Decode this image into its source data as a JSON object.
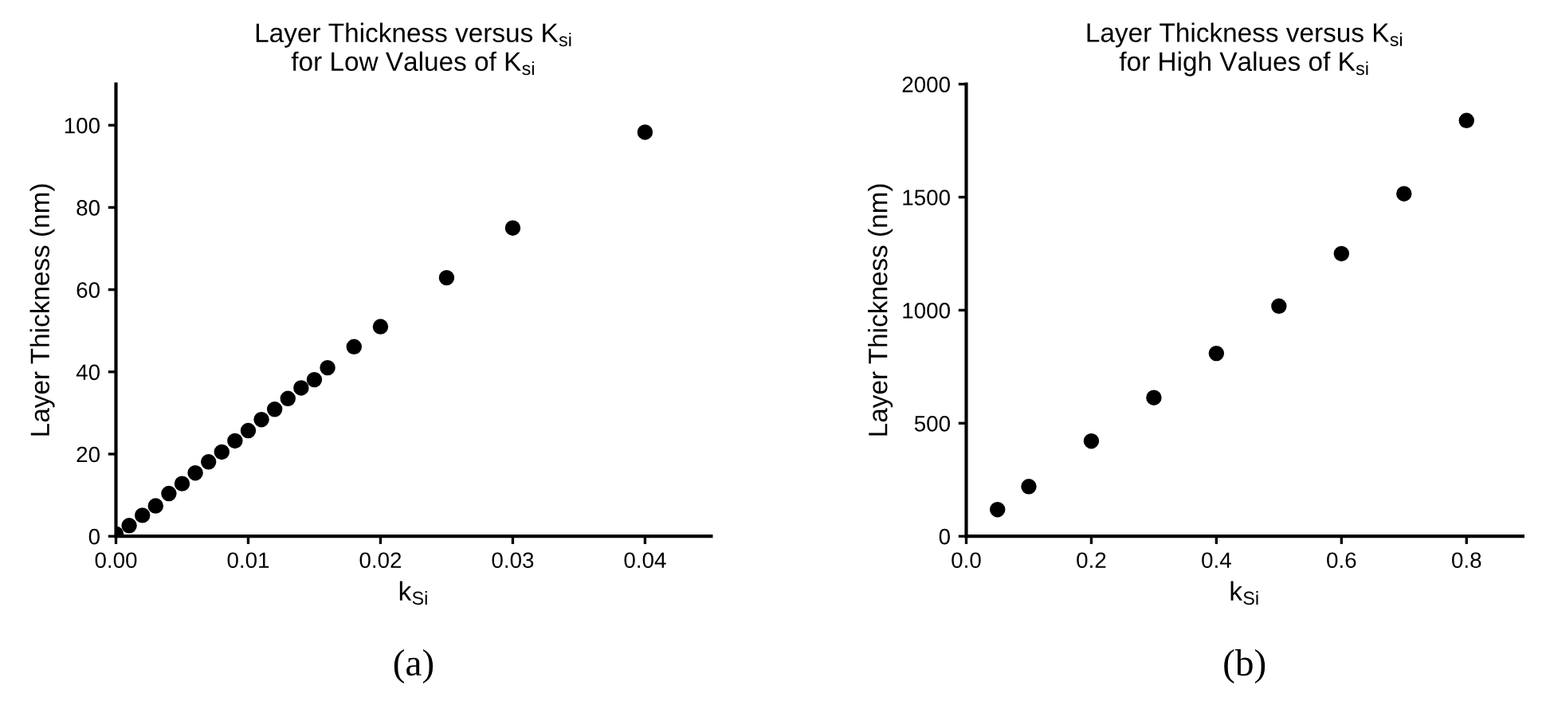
{
  "chart_data": [
    {
      "type": "scatter",
      "title": "Layer Thickness versus K$_{si}$\nfor Low Values of K$_{si}$",
      "xlabel": "k$_{Si}$",
      "ylabel": "Layer Thickness (nm)",
      "x": [
        0.0,
        0.001,
        0.002,
        0.003,
        0.004,
        0.005,
        0.006,
        0.007,
        0.008,
        0.009,
        0.01,
        0.011,
        0.012,
        0.013,
        0.014,
        0.015,
        0.016,
        0.018,
        0.02,
        0.025,
        0.03,
        0.04
      ],
      "series": [
        {
          "color": "#000000",
          "values": [
            0.6,
            2.6,
            5.1,
            7.4,
            10.4,
            12.8,
            15.4,
            18.1,
            20.5,
            23.2,
            25.7,
            28.4,
            30.9,
            33.5,
            36.1,
            38.1,
            41.0,
            46.1,
            51.0,
            62.9,
            75.0,
            98.3
          ]
        }
      ],
      "xlim": [
        0,
        0.045
      ],
      "ylim": [
        0,
        110
      ],
      "xticks": [
        {
          "value": 0,
          "label": "0.00"
        },
        0.01,
        0.02,
        0.03,
        0.04
      ],
      "yticks": [
        0,
        20,
        40,
        60,
        80,
        100
      ],
      "marker": "circle",
      "grid": false,
      "annotations": [
        "(a)"
      ]
    },
    {
      "type": "scatter",
      "title": "Layer Thickness versus K$_{si}$\nfor High Values of K$_{si}$",
      "xlabel": "k$_{Si}$",
      "ylabel": "Layer Thickness (nm)",
      "x": [
        0.05,
        0.1,
        0.2,
        0.3,
        0.4,
        0.5,
        0.6,
        0.7,
        0.8
      ],
      "series": [
        {
          "color": "#000000",
          "values": [
            118,
            220,
            421,
            613,
            809,
            1018,
            1250,
            1515,
            1839
          ]
        }
      ],
      "xlim": [
        0,
        0.89
      ],
      "ylim": [
        0,
        2000
      ],
      "xticks": [
        {
          "value": 0,
          "label": "0.0"
        },
        0.2,
        0.4,
        0.6,
        0.8
      ],
      "yticks": [
        0,
        500,
        1000,
        1500,
        2000
      ],
      "marker": "circle",
      "grid": false,
      "annotations": [
        "(b)"
      ]
    }
  ]
}
